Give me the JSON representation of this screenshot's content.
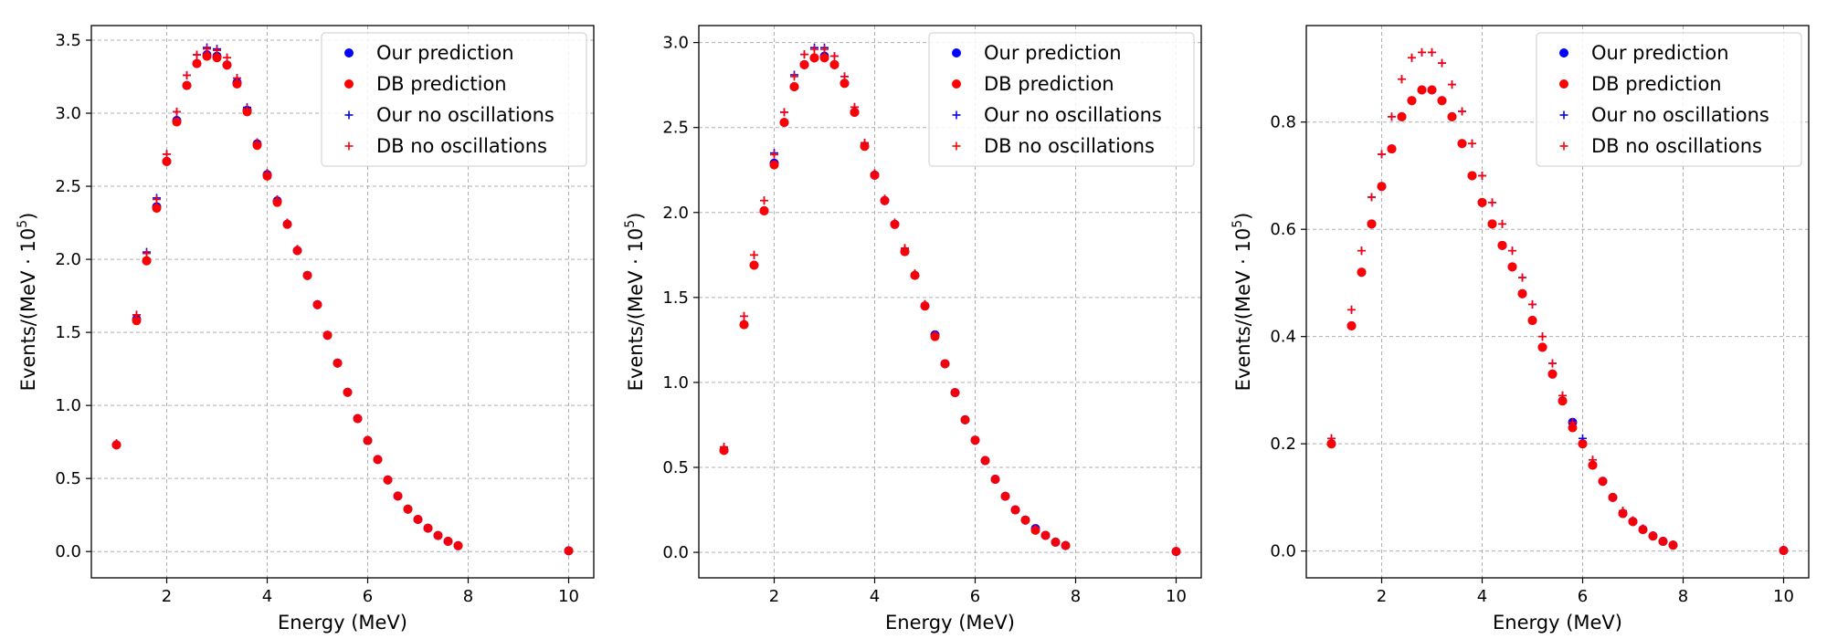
{
  "chart_data": [
    {
      "type": "scatter",
      "xlabel": "Energy (MeV)",
      "ylabel": "Events/(MeV · 10^5)",
      "xlim": [
        0.5,
        10.5
      ],
      "ylim": [
        -0.18,
        3.6
      ],
      "xticks": [
        2,
        4,
        6,
        8,
        10
      ],
      "yticks": [
        0.0,
        0.5,
        1.0,
        1.5,
        2.0,
        2.5,
        3.0,
        3.5
      ],
      "ytick_decimals": 1,
      "grid": true,
      "legend_position": "top-right",
      "x": [
        1.0,
        1.4,
        1.6,
        1.8,
        2.0,
        2.2,
        2.4,
        2.6,
        2.8,
        3.0,
        3.2,
        3.4,
        3.6,
        3.8,
        4.0,
        4.2,
        4.4,
        4.6,
        4.8,
        5.0,
        5.2,
        5.4,
        5.6,
        5.8,
        6.0,
        6.2,
        6.4,
        6.6,
        6.8,
        7.0,
        7.2,
        7.4,
        7.6,
        7.8,
        10.0
      ],
      "series": [
        {
          "name": "Our prediction",
          "marker": "dot",
          "color": "#0000ff",
          "values": [
            0.73,
            1.59,
            1.99,
            2.36,
            2.67,
            2.95,
            3.19,
            3.34,
            3.4,
            3.39,
            3.33,
            3.21,
            3.02,
            2.79,
            2.58,
            2.4,
            2.24,
            2.06,
            1.89,
            1.69,
            1.48,
            1.29,
            1.09,
            0.91,
            0.76,
            0.63,
            0.49,
            0.38,
            0.29,
            0.22,
            0.16,
            0.11,
            0.07,
            0.04,
            0.005
          ]
        },
        {
          "name": "DB prediction",
          "marker": "dot",
          "color": "#ff0000",
          "values": [
            0.73,
            1.58,
            1.99,
            2.35,
            2.67,
            2.94,
            3.19,
            3.34,
            3.39,
            3.38,
            3.33,
            3.2,
            3.01,
            2.78,
            2.57,
            2.39,
            2.24,
            2.06,
            1.89,
            1.69,
            1.48,
            1.29,
            1.09,
            0.91,
            0.76,
            0.63,
            0.49,
            0.38,
            0.29,
            0.22,
            0.16,
            0.11,
            0.07,
            0.04,
            0.005
          ]
        },
        {
          "name": "Our no oscillations",
          "marker": "plus",
          "color": "#0000ff",
          "values": [
            0.74,
            1.62,
            2.05,
            2.42,
            2.72,
            3.01,
            3.26,
            3.4,
            3.45,
            3.44,
            3.38,
            3.24,
            3.04,
            2.8,
            2.59,
            2.41,
            2.25,
            2.07,
            1.89,
            1.69,
            1.48,
            1.29,
            1.09,
            0.91,
            0.76,
            0.63,
            0.49,
            0.38,
            0.29,
            0.22,
            0.16,
            0.11,
            0.07,
            0.04,
            0.005
          ]
        },
        {
          "name": "DB no oscillations",
          "marker": "plus",
          "color": "#ff0000",
          "values": [
            0.74,
            1.62,
            2.04,
            2.41,
            2.72,
            3.01,
            3.26,
            3.4,
            3.44,
            3.43,
            3.38,
            3.24,
            3.03,
            2.8,
            2.59,
            2.41,
            2.25,
            2.07,
            1.89,
            1.69,
            1.48,
            1.29,
            1.09,
            0.91,
            0.76,
            0.63,
            0.49,
            0.38,
            0.29,
            0.22,
            0.16,
            0.11,
            0.07,
            0.04,
            0.005
          ]
        }
      ]
    },
    {
      "type": "scatter",
      "xlabel": "Energy (MeV)",
      "ylabel": "Events/(MeV · 10^5)",
      "xlim": [
        0.5,
        10.5
      ],
      "ylim": [
        -0.15,
        3.1
      ],
      "xticks": [
        2,
        4,
        6,
        8,
        10
      ],
      "yticks": [
        0.0,
        0.5,
        1.0,
        1.5,
        2.0,
        2.5,
        3.0
      ],
      "ytick_decimals": 1,
      "grid": true,
      "legend_position": "top-right",
      "x": [
        1.0,
        1.4,
        1.6,
        1.8,
        2.0,
        2.2,
        2.4,
        2.6,
        2.8,
        3.0,
        3.2,
        3.4,
        3.6,
        3.8,
        4.0,
        4.2,
        4.4,
        4.6,
        4.8,
        5.0,
        5.2,
        5.4,
        5.6,
        5.8,
        6.0,
        6.2,
        6.4,
        6.6,
        6.8,
        7.0,
        7.2,
        7.4,
        7.6,
        7.8,
        10.0
      ],
      "series": [
        {
          "name": "Our prediction",
          "marker": "dot",
          "color": "#0000ff",
          "values": [
            0.6,
            1.34,
            1.69,
            2.01,
            2.29,
            2.53,
            2.74,
            2.87,
            2.91,
            2.92,
            2.87,
            2.76,
            2.59,
            2.39,
            2.22,
            2.07,
            1.93,
            1.77,
            1.63,
            1.45,
            1.28,
            1.11,
            0.94,
            0.78,
            0.66,
            0.54,
            0.43,
            0.33,
            0.25,
            0.19,
            0.14,
            0.1,
            0.06,
            0.04,
            0.005
          ]
        },
        {
          "name": "DB prediction",
          "marker": "dot",
          "color": "#ff0000",
          "values": [
            0.6,
            1.34,
            1.69,
            2.01,
            2.28,
            2.53,
            2.74,
            2.87,
            2.91,
            2.91,
            2.87,
            2.76,
            2.59,
            2.39,
            2.22,
            2.07,
            1.93,
            1.77,
            1.63,
            1.45,
            1.27,
            1.11,
            0.94,
            0.78,
            0.66,
            0.54,
            0.43,
            0.33,
            0.25,
            0.19,
            0.13,
            0.1,
            0.06,
            0.04,
            0.005
          ]
        },
        {
          "name": "Our no oscillations",
          "marker": "plus",
          "color": "#0000ff",
          "values": [
            0.62,
            1.39,
            1.75,
            2.07,
            2.35,
            2.59,
            2.81,
            2.93,
            2.97,
            2.97,
            2.92,
            2.8,
            2.62,
            2.41,
            2.23,
            2.08,
            1.94,
            1.79,
            1.64,
            1.46,
            1.28,
            1.11,
            0.94,
            0.78,
            0.66,
            0.54,
            0.43,
            0.33,
            0.25,
            0.19,
            0.14,
            0.1,
            0.06,
            0.04,
            0.005
          ]
        },
        {
          "name": "DB no oscillations",
          "marker": "plus",
          "color": "#ff0000",
          "values": [
            0.62,
            1.39,
            1.75,
            2.07,
            2.34,
            2.59,
            2.8,
            2.93,
            2.96,
            2.96,
            2.92,
            2.8,
            2.62,
            2.41,
            2.23,
            2.08,
            1.94,
            1.79,
            1.64,
            1.46,
            1.28,
            1.11,
            0.94,
            0.78,
            0.66,
            0.54,
            0.43,
            0.33,
            0.25,
            0.19,
            0.14,
            0.1,
            0.06,
            0.04,
            0.005
          ]
        }
      ]
    },
    {
      "type": "scatter",
      "xlabel": "Energy (MeV)",
      "ylabel": "Events/(MeV · 10^5)",
      "xlim": [
        0.5,
        10.5
      ],
      "ylim": [
        -0.05,
        0.98
      ],
      "xticks": [
        2,
        4,
        6,
        8,
        10
      ],
      "yticks": [
        0.0,
        0.2,
        0.4,
        0.6,
        0.8
      ],
      "ytick_decimals": 1,
      "grid": true,
      "legend_position": "top-right",
      "x": [
        1.0,
        1.4,
        1.6,
        1.8,
        2.0,
        2.2,
        2.4,
        2.6,
        2.8,
        3.0,
        3.2,
        3.4,
        3.6,
        3.8,
        4.0,
        4.2,
        4.4,
        4.6,
        4.8,
        5.0,
        5.2,
        5.4,
        5.6,
        5.8,
        6.0,
        6.2,
        6.4,
        6.6,
        6.8,
        7.0,
        7.2,
        7.4,
        7.6,
        7.8,
        10.0
      ],
      "series": [
        {
          "name": "Our prediction",
          "marker": "dot",
          "color": "#0000ff",
          "values": [
            0.2,
            0.42,
            0.52,
            0.61,
            0.68,
            0.75,
            0.81,
            0.84,
            0.86,
            0.86,
            0.84,
            0.81,
            0.76,
            0.7,
            0.65,
            0.61,
            0.57,
            0.53,
            0.48,
            0.43,
            0.38,
            0.33,
            0.28,
            0.24,
            0.2,
            0.16,
            0.13,
            0.1,
            0.07,
            0.055,
            0.04,
            0.028,
            0.018,
            0.011,
            0.001
          ]
        },
        {
          "name": "DB prediction",
          "marker": "dot",
          "color": "#ff0000",
          "values": [
            0.2,
            0.42,
            0.52,
            0.61,
            0.68,
            0.75,
            0.81,
            0.84,
            0.86,
            0.86,
            0.84,
            0.81,
            0.76,
            0.7,
            0.65,
            0.61,
            0.57,
            0.53,
            0.48,
            0.43,
            0.38,
            0.33,
            0.28,
            0.23,
            0.2,
            0.16,
            0.13,
            0.1,
            0.07,
            0.055,
            0.04,
            0.028,
            0.018,
            0.011,
            0.001
          ]
        },
        {
          "name": "Our no oscillations",
          "marker": "plus",
          "color": "#0000ff",
          "values": [
            0.21,
            0.45,
            0.56,
            0.66,
            0.74,
            0.81,
            0.88,
            0.92,
            0.93,
            0.93,
            0.91,
            0.87,
            0.82,
            0.76,
            0.7,
            0.65,
            0.61,
            0.56,
            0.51,
            0.46,
            0.4,
            0.35,
            0.29,
            0.24,
            0.21,
            0.17,
            0.13,
            0.1,
            0.075,
            0.057,
            0.042,
            0.029,
            0.019,
            0.012,
            0.001
          ]
        },
        {
          "name": "DB no oscillations",
          "marker": "plus",
          "color": "#ff0000",
          "values": [
            0.21,
            0.45,
            0.56,
            0.66,
            0.74,
            0.81,
            0.88,
            0.92,
            0.93,
            0.93,
            0.91,
            0.87,
            0.82,
            0.76,
            0.7,
            0.65,
            0.61,
            0.56,
            0.51,
            0.46,
            0.4,
            0.35,
            0.29,
            0.24,
            0.2,
            0.17,
            0.13,
            0.1,
            0.075,
            0.057,
            0.042,
            0.029,
            0.019,
            0.012,
            0.001
          ]
        }
      ]
    }
  ]
}
